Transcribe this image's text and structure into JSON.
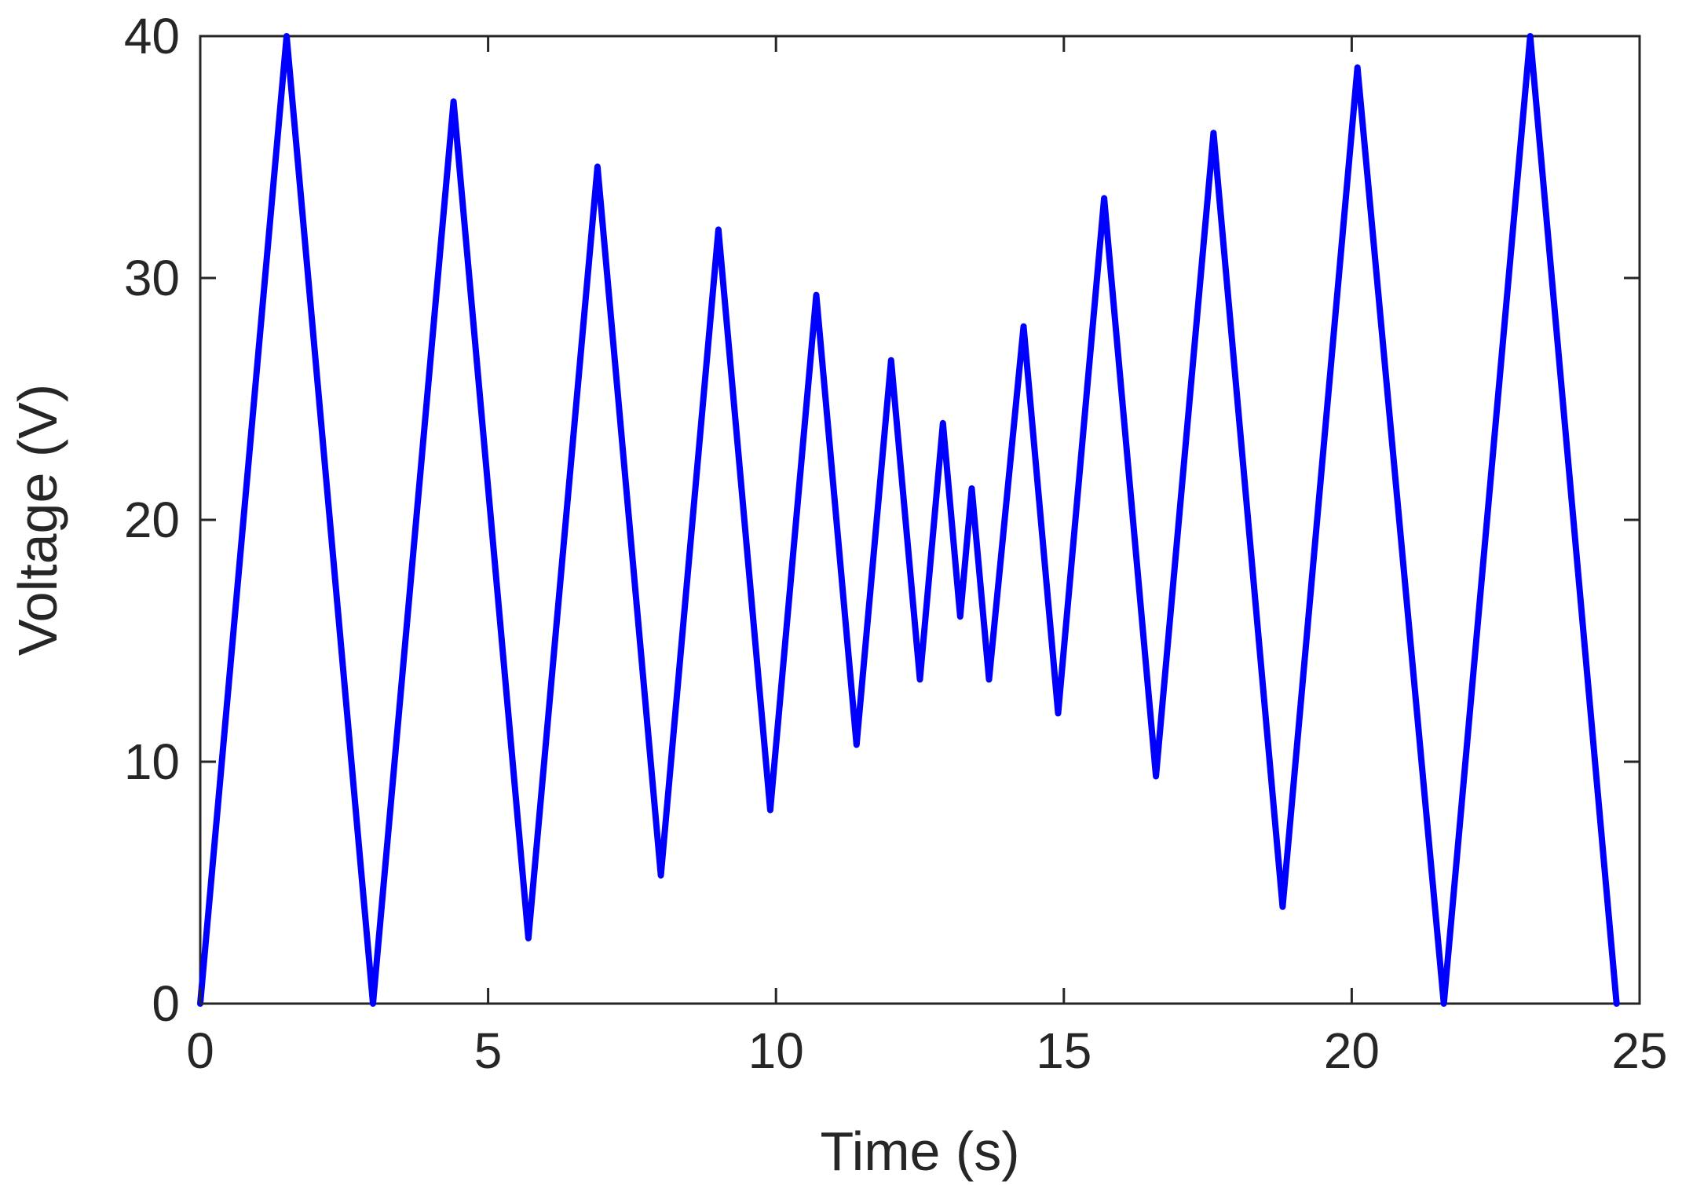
{
  "chart_data": {
    "type": "line",
    "title": "",
    "xlabel": "Time (s)",
    "ylabel": "Voltage (V)",
    "xlim": [
      0,
      25
    ],
    "ylim": [
      0,
      40
    ],
    "xticks": [
      0,
      5,
      10,
      15,
      20,
      25
    ],
    "yticks": [
      0,
      10,
      20,
      30,
      40
    ],
    "xtick_labels": [
      "0",
      "5",
      "10",
      "15",
      "20",
      "25"
    ],
    "ytick_labels": [
      "0",
      "10",
      "20",
      "30",
      "40"
    ],
    "grid": false,
    "legend": "none",
    "series": [
      {
        "color": "#0000ff",
        "x": [
          0,
          1.5,
          3.0,
          4.4,
          5.7,
          6.9,
          8.0,
          9.0,
          9.9,
          10.7,
          11.4,
          12.0,
          12.5,
          12.9,
          13.2,
          13.4,
          13.7,
          14.3,
          14.9,
          15.7,
          16.6,
          17.6,
          18.8,
          20.1,
          21.6,
          23.1,
          24.6
        ],
        "y": [
          0,
          40.0,
          0,
          37.3,
          2.7,
          34.6,
          5.3,
          32.0,
          8.0,
          29.3,
          10.7,
          26.6,
          13.4,
          24.0,
          16.0,
          21.3,
          13.4,
          28.0,
          12.0,
          33.3,
          9.4,
          36.0,
          4.0,
          38.7,
          0,
          40.0,
          0
        ]
      }
    ]
  }
}
